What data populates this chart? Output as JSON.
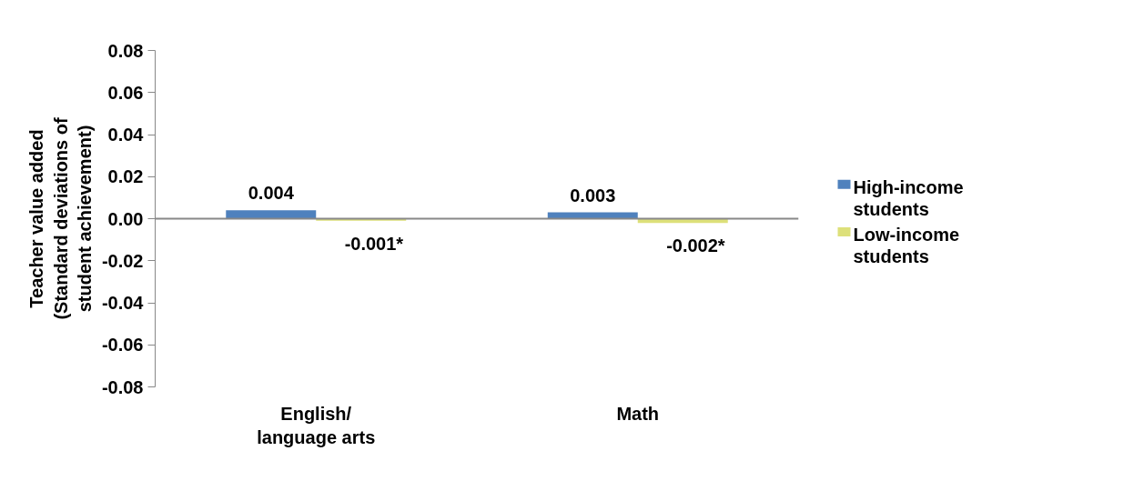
{
  "chart_data": {
    "type": "bar",
    "categories": [
      "English/ language arts",
      "Math"
    ],
    "ylabel": "Teacher value added (Standard deviations of student achievement)",
    "series": [
      {
        "name": "High-income students",
        "color": "#4f81bd",
        "values": [
          0.004,
          0.003
        ],
        "value_labels": [
          "0.004",
          "0.003"
        ]
      },
      {
        "name": "Low-income students",
        "color": "#dde07a",
        "values": [
          -0.001,
          -0.002
        ],
        "value_labels": [
          "-0.001*",
          "-0.002*"
        ]
      }
    ],
    "ylim": [
      -0.08,
      0.08
    ],
    "yticks": [
      {
        "value": 0.08,
        "label": "0.08"
      },
      {
        "value": 0.06,
        "label": "0.06"
      },
      {
        "value": 0.04,
        "label": "0.04"
      },
      {
        "value": 0.02,
        "label": "0.02"
      },
      {
        "value": 0,
        "label": "0.00"
      },
      {
        "value": -0.02,
        "label": "-0.02"
      },
      {
        "value": -0.04,
        "label": "-0.04"
      },
      {
        "value": -0.06,
        "label": "-0.06"
      },
      {
        "value": -0.08,
        "label": "-0.08"
      }
    ],
    "legend": "right"
  }
}
